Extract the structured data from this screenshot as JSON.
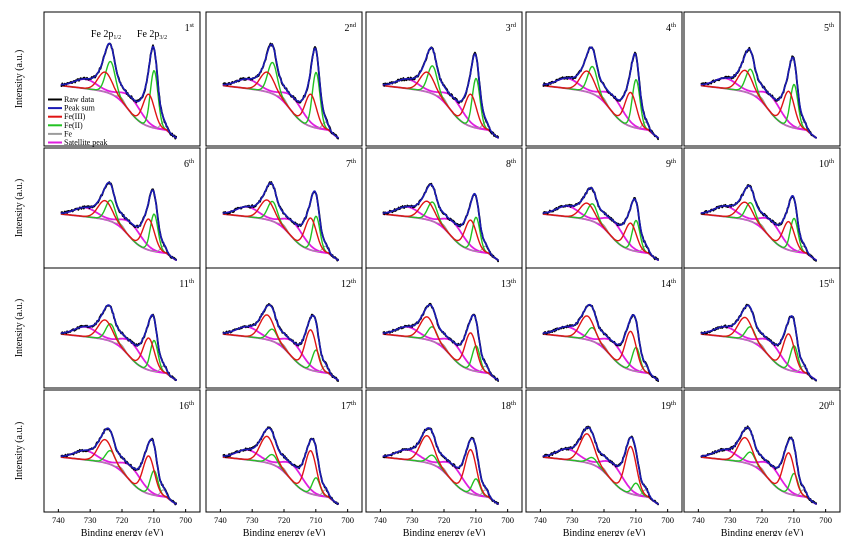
{
  "figure": {
    "ylabel": "Intensity (a.u.)",
    "xlabel": "Binding energy (eV)",
    "peak_labels": [
      {
        "base": "Fe 2p",
        "sub": "1/2",
        "panel": 0
      },
      {
        "base": "Fe 2p",
        "sub": "3/2",
        "panel": 0
      }
    ]
  },
  "colors": {
    "raw": "#000000",
    "sum": "#1a1ab4",
    "fe3": "#e01414",
    "fe2": "#22c222",
    "fe0": "#9c9c9c",
    "sat": "#e01ee0"
  },
  "chart_data": {
    "type": "line",
    "layout": "4x5 panel grid",
    "xlabel": "Binding energy (eV)",
    "ylabel": "Intensity (a.u.)",
    "x_reversed": true,
    "xlim": [
      742,
      698
    ],
    "xticks": [
      740,
      730,
      720,
      710,
      700
    ],
    "legend": {
      "panel": 0,
      "placement": "left",
      "entries": [
        {
          "key": "raw",
          "name": "Raw data"
        },
        {
          "key": "sum",
          "name": "Peak sum"
        },
        {
          "key": "fe3",
          "name": "Fe(III)"
        },
        {
          "key": "fe2",
          "name": "Fe(II)"
        },
        {
          "key": "fe0",
          "name": "Fe"
        },
        {
          "key": "sat",
          "name": "Satellite peak"
        }
      ]
    },
    "components": {
      "sum": {
        "peaks": [
          {
            "center": 710.8,
            "height": 0.9
          },
          {
            "center": 724.4,
            "height": 0.58
          }
        ]
      },
      "fe3": {
        "peaks": [
          {
            "center": 711.6,
            "height": 0.55
          },
          {
            "center": 725.3,
            "height": 0.35
          }
        ]
      },
      "fe2": {
        "peaks": [
          {
            "center": 709.9,
            "height": 0.62
          },
          {
            "center": 723.6,
            "height": 0.37
          }
        ]
      },
      "sat": {
        "peaks": [
          {
            "center": 716.8,
            "height": 0.22
          },
          {
            "center": 731.5,
            "height": 0.12
          }
        ]
      }
    },
    "panels": [
      {
        "label": "1",
        "sup": "st",
        "fe3": 0.55,
        "fe2": 0.95,
        "sat": 0.22
      },
      {
        "label": "2",
        "sup": "nd",
        "fe3": 0.55,
        "fe2": 0.92,
        "sat": 0.22
      },
      {
        "label": "3",
        "sup": "rd",
        "fe3": 0.55,
        "fe2": 0.82,
        "sat": 0.22
      },
      {
        "label": "4",
        "sup": "th",
        "fe3": 0.58,
        "fe2": 0.8,
        "sat": 0.24
      },
      {
        "label": "5",
        "sup": "th",
        "fe3": 0.6,
        "fe2": 0.72,
        "sat": 0.24
      },
      {
        "label": "6",
        "sup": "th",
        "fe3": 0.6,
        "fe2": 0.7,
        "sat": 0.24
      },
      {
        "label": "7",
        "sup": "th",
        "fe3": 0.62,
        "fe2": 0.66,
        "sat": 0.26
      },
      {
        "label": "8",
        "sup": "th",
        "fe3": 0.58,
        "fe2": 0.64,
        "sat": 0.26
      },
      {
        "label": "9",
        "sup": "th",
        "fe3": 0.52,
        "fe2": 0.58,
        "sat": 0.28
      },
      {
        "label": "10",
        "sup": "th",
        "fe3": 0.55,
        "fe2": 0.62,
        "sat": 0.28
      },
      {
        "label": "11",
        "sup": "th",
        "fe3": 0.62,
        "fe2": 0.58,
        "sat": 0.26
      },
      {
        "label": "12",
        "sup": "th",
        "fe3": 0.78,
        "fe2": 0.4,
        "sat": 0.26
      },
      {
        "label": "13",
        "sup": "th",
        "fe3": 0.72,
        "fe2": 0.48,
        "sat": 0.26
      },
      {
        "label": "14",
        "sup": "th",
        "fe3": 0.75,
        "fe2": 0.45,
        "sat": 0.26
      },
      {
        "label": "15",
        "sup": "th",
        "fe3": 0.7,
        "fe2": 0.48,
        "sat": 0.26
      },
      {
        "label": "16",
        "sup": "th",
        "fe3": 0.72,
        "fe2": 0.45,
        "sat": 0.24
      },
      {
        "label": "17",
        "sup": "th",
        "fe3": 0.82,
        "fe2": 0.32,
        "sat": 0.26
      },
      {
        "label": "18",
        "sup": "th",
        "fe3": 0.84,
        "fe2": 0.3,
        "sat": 0.26
      },
      {
        "label": "19",
        "sup": "th",
        "fe3": 0.9,
        "fe2": 0.22,
        "sat": 0.28
      },
      {
        "label": "20",
        "sup": "th",
        "fe3": 0.78,
        "fe2": 0.4,
        "sat": 0.26
      }
    ]
  }
}
